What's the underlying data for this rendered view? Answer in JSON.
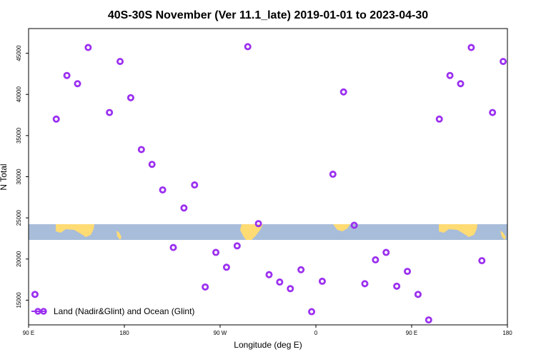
{
  "chart_data": {
    "type": "scatter",
    "title": "40S-30S November (Ver 11.1_late)   2019-01-01 to 2023-04-30",
    "xlabel": "Longitude (deg E)",
    "ylabel": "N Total",
    "xlim": [
      90,
      540
    ],
    "ylim": [
      12000,
      48000
    ],
    "x_ticks": [
      {
        "value": 90,
        "label": "90 E"
      },
      {
        "value": 180,
        "label": "180"
      },
      {
        "value": 270,
        "label": "90 W"
      },
      {
        "value": 360,
        "label": "0"
      },
      {
        "value": 450,
        "label": "90 E"
      },
      {
        "value": 540,
        "label": "180"
      }
    ],
    "y_ticks": [
      15000,
      20000,
      25000,
      30000,
      35000,
      40000,
      45000
    ],
    "grid": false,
    "legend_position": "bottom-left",
    "series": [
      {
        "name": "Land (Nadir&Glint) and Ocean (Glint)",
        "color": "#9B30F0",
        "x": [
          96,
          116,
          126,
          136,
          146,
          166,
          176,
          186,
          196,
          206,
          216,
          226,
          236,
          246,
          256,
          266,
          276,
          286,
          296,
          306,
          316,
          326,
          336,
          346,
          356,
          366,
          376,
          386,
          396,
          406,
          416,
          426,
          436,
          446,
          456,
          466,
          476,
          486,
          496,
          506,
          516,
          526,
          536
        ],
        "y": [
          15700,
          37000,
          42300,
          41300,
          45700,
          37800,
          44000,
          39600,
          33300,
          31500,
          28400,
          21400,
          26200,
          29000,
          16600,
          20800,
          19000,
          21600,
          45800,
          24300,
          18100,
          17200,
          16400,
          18700,
          13600,
          17300,
          30300,
          40300,
          24100,
          17000,
          19900,
          20800,
          16700,
          18500,
          15700,
          12600,
          37000,
          42300,
          41300,
          45700,
          19800,
          37800,
          44000
        ]
      }
    ],
    "map_band": {
      "land_color": "#FFDB74",
      "ocean_color": "#A8BDDA"
    }
  }
}
